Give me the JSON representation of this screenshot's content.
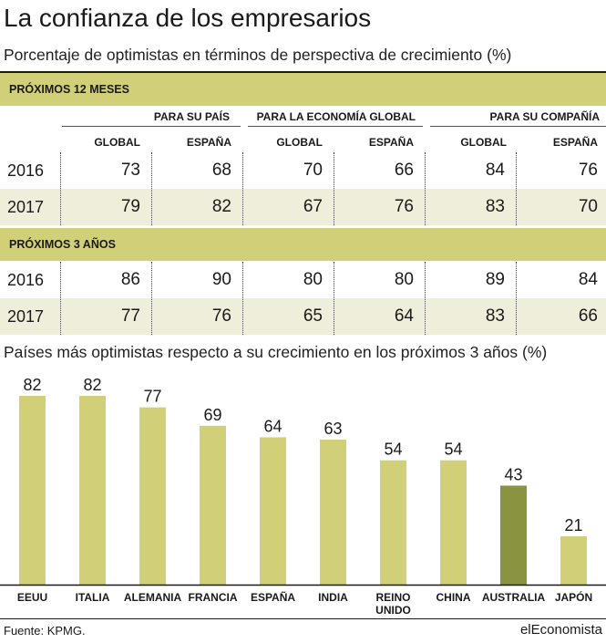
{
  "title": "La confianza de los empresarios",
  "subtitle": "Porcentaje de optimistas en términos de perspectiva de crecimiento (%)",
  "table": {
    "groups": [
      "PARA SU PAÍS",
      "PARA LA ECONOMÍA GLOBAL",
      "PARA SU COMPAÑÍA"
    ],
    "columns": [
      "GLOBAL",
      "ESPAÑA",
      "GLOBAL",
      "ESPAÑA",
      "GLOBAL",
      "ESPAÑA"
    ],
    "sections": [
      {
        "label": "PRÓXIMOS 12 MESES",
        "rows": [
          {
            "year": "2016",
            "values": [
              "73",
              "68",
              "70",
              "66",
              "84",
              "76"
            ]
          },
          {
            "year": "2017",
            "values": [
              "79",
              "82",
              "67",
              "76",
              "83",
              "70"
            ]
          }
        ]
      },
      {
        "label": "PRÓXIMOS 3 AÑOS",
        "rows": [
          {
            "year": "2016",
            "values": [
              "86",
              "90",
              "80",
              "80",
              "89",
              "84"
            ]
          },
          {
            "year": "2017",
            "values": [
              "77",
              "76",
              "65",
              "64",
              "83",
              "66"
            ]
          }
        ]
      }
    ]
  },
  "chart_data": {
    "type": "bar",
    "title": "Países más optimistas respecto a su crecimiento en los próximos 3 años (%)",
    "categories": [
      "EEUU",
      "ITALIA",
      "ALEMANIA",
      "FRANCIA",
      "ESPAÑA",
      "INDIA",
      "REINO\nUNIDO",
      "CHINA",
      "AUSTRALIA",
      "JAPÓN"
    ],
    "values": [
      82,
      82,
      77,
      69,
      64,
      63,
      54,
      54,
      43,
      21
    ],
    "colors": [
      "#d1cf78",
      "#d1cf78",
      "#d1cf78",
      "#d1cf78",
      "#d1cf78",
      "#d1cf78",
      "#d1cf78",
      "#d1cf78",
      "#8a9440",
      "#d1cf78"
    ],
    "ylim": [
      0,
      82
    ]
  },
  "footer": {
    "source": "Fuente: KPMG.",
    "brand": "elEconomista"
  }
}
